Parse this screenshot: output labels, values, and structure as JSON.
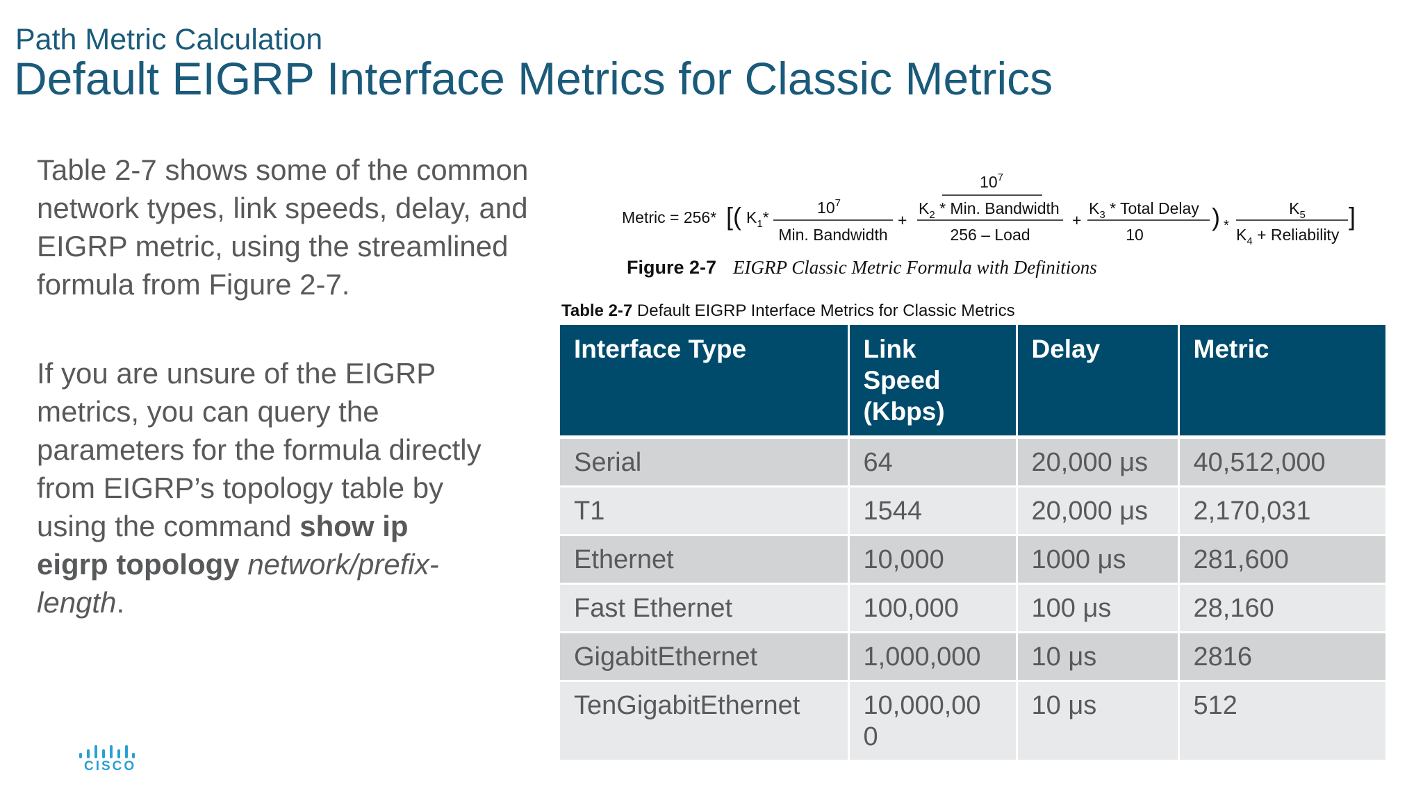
{
  "header": {
    "subtitle": "Path Metric Calculation",
    "title": "Default EIGRP Interface Metrics for Classic Metrics"
  },
  "body": {
    "para1": "Table 2-7 shows some of the common network types, link speeds, delay, and EIGRP metric, using the streamlined formula from Figure 2-7.",
    "para2_prefix": "If you are unsure of the EIGRP metrics, you can query the parameters for the formula directly from EIGRP’s topology table by using the command ",
    "para2_command": "show ip eigrp topology",
    "para2_argument": "network/prefix-length",
    "para2_suffix": "."
  },
  "figure": {
    "formula": {
      "lhs": "Metric = 256*",
      "k1": "K",
      "k1_sub": "1",
      "term1_num": "10",
      "term1_num_exp": "7",
      "term1_den": "Min. Bandwidth",
      "term2_top": "10",
      "term2_top_exp": "7",
      "term2_num_k": "K",
      "term2_num_sub": "2",
      "term2_num_rest": " * Min. Bandwidth",
      "term2_den": "256 – Load",
      "term3_num_k": "K",
      "term3_num_sub": "3",
      "term3_num_rest": " * Total Delay",
      "term3_den": "10",
      "term4_num_k": "K",
      "term4_num_sub": "5",
      "term4_den_k": "K",
      "term4_den_sub": "4",
      "term4_den_rest": " + Reliability"
    },
    "caption_label": "Figure 2-7",
    "caption_text": "EIGRP Classic Metric Formula with Definitions"
  },
  "table": {
    "caption_label": "Table 2-7",
    "caption_text": " Default EIGRP Interface Metrics for Classic Metrics",
    "headers": [
      "Interface Type",
      "Link Speed (Kbps)",
      "Delay",
      "Metric"
    ],
    "rows": [
      [
        "Serial",
        "64",
        "20,000 μs",
        "40,512,000"
      ],
      [
        "T1",
        "1544",
        "20,000 μs",
        "2,170,031"
      ],
      [
        "Ethernet",
        "10,000",
        "1000 μs",
        "281,600"
      ],
      [
        "Fast Ethernet",
        "100,000",
        "100 μs",
        "28,160"
      ],
      [
        "GigabitEthernet",
        "1,000,000",
        "10 μs",
        "2816"
      ],
      [
        "TenGigabitEthernet",
        "10,000,000",
        "10 μs",
        "512"
      ]
    ]
  },
  "footer": {
    "logo_text": "CISCO",
    "logo_color": "#2a9fd6"
  },
  "colors": {
    "title": "#1a5a7a",
    "table_header": "#004b6c",
    "row_odd": "#d1d3d4",
    "row_even": "#e8e9ea"
  }
}
